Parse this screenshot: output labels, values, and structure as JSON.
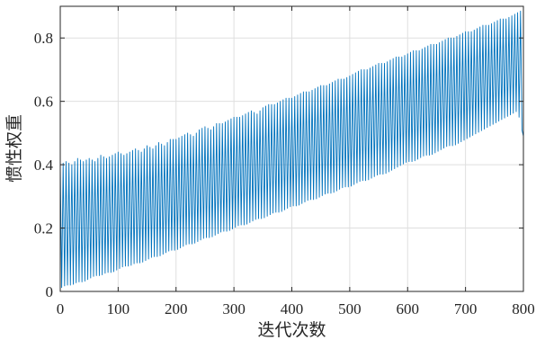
{
  "chart_data": {
    "type": "line",
    "title": "",
    "xlabel": "迭代次数",
    "ylabel": "惯性权重",
    "xlim": [
      0,
      800
    ],
    "ylim": [
      0,
      0.9
    ],
    "x_ticks": [
      0,
      100,
      200,
      300,
      400,
      500,
      600,
      700,
      800
    ],
    "x_tick_labels": [
      "0",
      "100",
      "200",
      "300",
      "400",
      "500",
      "600",
      "700",
      "800"
    ],
    "y_ticks": [
      0,
      0.2,
      0.4,
      0.6,
      0.8
    ],
    "y_tick_labels": [
      "0",
      "0.2",
      "0.4",
      "0.6",
      "0.8"
    ],
    "grid": true,
    "line_color": "#0072BD",
    "series": [
      {
        "name": "",
        "sampling": "envelope of rapid oscillation, one pair per 10 iterations",
        "x": [
          0,
          10,
          20,
          30,
          40,
          50,
          60,
          70,
          80,
          90,
          100,
          110,
          120,
          130,
          140,
          150,
          160,
          170,
          180,
          190,
          200,
          210,
          220,
          230,
          240,
          250,
          260,
          270,
          280,
          290,
          300,
          310,
          320,
          330,
          340,
          350,
          360,
          370,
          380,
          390,
          400,
          410,
          420,
          430,
          440,
          450,
          460,
          470,
          480,
          490,
          500,
          510,
          520,
          530,
          540,
          550,
          560,
          570,
          580,
          590,
          600,
          610,
          620,
          630,
          640,
          650,
          660,
          670,
          680,
          690,
          700,
          710,
          720,
          730,
          740,
          750,
          760,
          770,
          780,
          790,
          800
        ],
        "upper": [
          0.4,
          0.41,
          0.4,
          0.42,
          0.41,
          0.42,
          0.41,
          0.43,
          0.42,
          0.43,
          0.44,
          0.43,
          0.44,
          0.45,
          0.44,
          0.46,
          0.45,
          0.47,
          0.46,
          0.48,
          0.48,
          0.49,
          0.5,
          0.49,
          0.51,
          0.52,
          0.51,
          0.53,
          0.53,
          0.54,
          0.55,
          0.55,
          0.56,
          0.57,
          0.56,
          0.58,
          0.59,
          0.59,
          0.6,
          0.61,
          0.61,
          0.62,
          0.63,
          0.63,
          0.64,
          0.65,
          0.65,
          0.66,
          0.67,
          0.67,
          0.68,
          0.69,
          0.7,
          0.7,
          0.71,
          0.72,
          0.72,
          0.73,
          0.74,
          0.74,
          0.75,
          0.76,
          0.76,
          0.77,
          0.78,
          0.78,
          0.79,
          0.8,
          0.8,
          0.81,
          0.82,
          0.82,
          0.83,
          0.84,
          0.84,
          0.85,
          0.86,
          0.86,
          0.87,
          0.88,
          0.89
        ],
        "lower": [
          0.01,
          0.02,
          0.02,
          0.03,
          0.03,
          0.04,
          0.05,
          0.05,
          0.06,
          0.06,
          0.07,
          0.08,
          0.08,
          0.09,
          0.09,
          0.1,
          0.11,
          0.11,
          0.12,
          0.13,
          0.13,
          0.14,
          0.15,
          0.15,
          0.16,
          0.17,
          0.17,
          0.18,
          0.19,
          0.19,
          0.2,
          0.21,
          0.21,
          0.22,
          0.23,
          0.23,
          0.24,
          0.25,
          0.25,
          0.26,
          0.27,
          0.27,
          0.28,
          0.29,
          0.29,
          0.3,
          0.31,
          0.31,
          0.32,
          0.33,
          0.33,
          0.34,
          0.35,
          0.35,
          0.36,
          0.37,
          0.37,
          0.38,
          0.39,
          0.4,
          0.41,
          0.41,
          0.42,
          0.43,
          0.43,
          0.44,
          0.45,
          0.46,
          0.46,
          0.47,
          0.48,
          0.49,
          0.5,
          0.51,
          0.52,
          0.53,
          0.54,
          0.55,
          0.56,
          0.57,
          0.49
        ]
      }
    ]
  }
}
